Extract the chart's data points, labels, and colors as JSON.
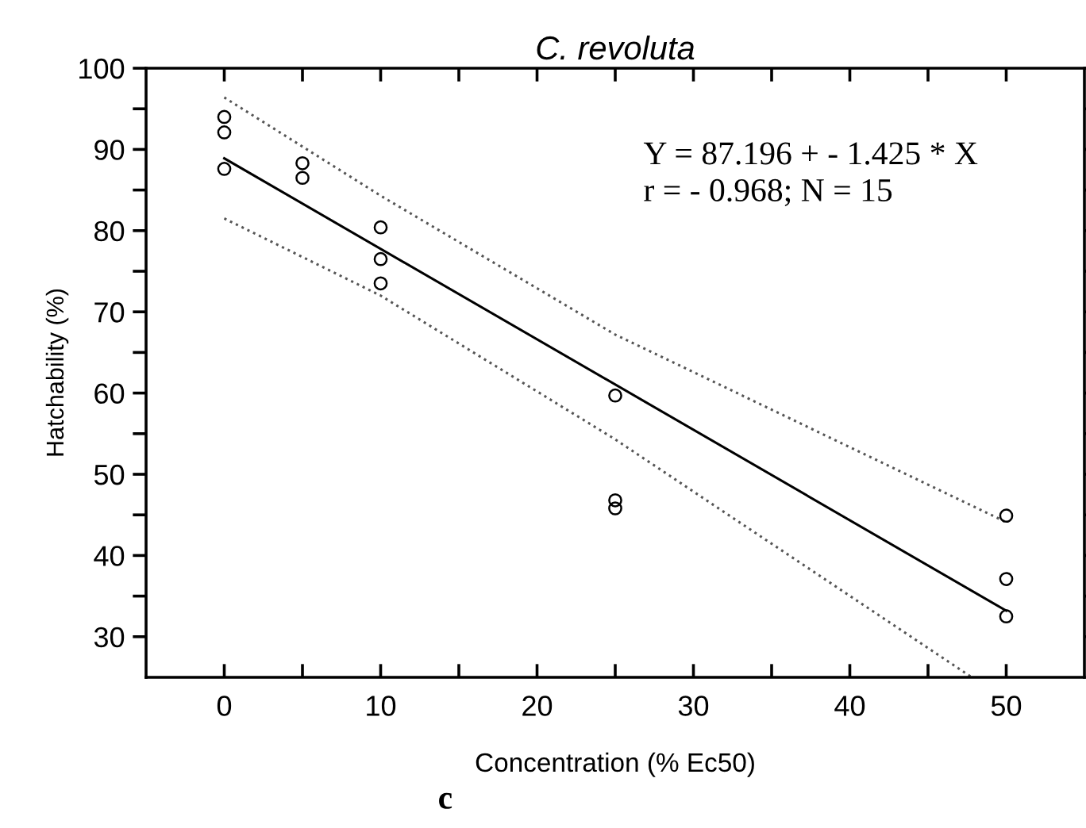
{
  "chart_data": {
    "type": "scatter",
    "title": "C. revoluta",
    "xlabel": "Concentration (% Ec50)",
    "ylabel": "Hatchability (%)",
    "annotations": [
      "Y = 87.196 + - 1.425 * X\nr = - 0.968; N = 15",
      "c"
    ],
    "series": [
      {
        "color": "#000000",
        "marker": "circle",
        "x": [
          0,
          0,
          0,
          5,
          5,
          10,
          10,
          10,
          25,
          25,
          25,
          50,
          50,
          50
        ],
        "values": [
          94.0,
          92.1,
          87.6,
          88.3,
          86.5,
          80.4,
          76.5,
          73.5,
          59.7,
          46.8,
          45.8,
          44.9,
          37.1,
          32.5
        ]
      },
      {
        "type": "line",
        "color": "#000000",
        "line_style": "solid",
        "x": [
          0,
          50
        ],
        "values": [
          88.9,
          33.2
        ]
      },
      {
        "type": "line",
        "color": "#555555",
        "line_style": "dotted",
        "x": [
          0,
          10,
          25,
          50
        ],
        "values": [
          96.4,
          84.3,
          67.2,
          44.1
        ]
      },
      {
        "type": "line",
        "color": "#555555",
        "line_style": "dotted",
        "x": [
          0,
          10,
          25,
          47.8
        ],
        "values": [
          81.5,
          72.0,
          54.3,
          25
        ]
      }
    ],
    "xlim": [
      -5,
      55
    ],
    "ylim": [
      25,
      100
    ],
    "xticks": [
      0,
      {
        "value": 5,
        "label": null
      },
      10,
      {
        "value": 15,
        "label": null
      },
      20,
      {
        "value": 25,
        "label": null
      },
      30,
      {
        "value": 35,
        "label": null
      },
      40,
      {
        "value": 45,
        "label": null
      },
      50
    ],
    "yticks": [
      30,
      {
        "value": 35,
        "label": null
      },
      40,
      {
        "value": 45,
        "label": null
      },
      50,
      {
        "value": 55,
        "label": null
      },
      60,
      {
        "value": 65,
        "label": null
      },
      70,
      {
        "value": 75,
        "label": null
      },
      80,
      {
        "value": 85,
        "label": null
      },
      90,
      {
        "value": 95,
        "label": null
      },
      100
    ],
    "grid": false,
    "legend": false
  }
}
